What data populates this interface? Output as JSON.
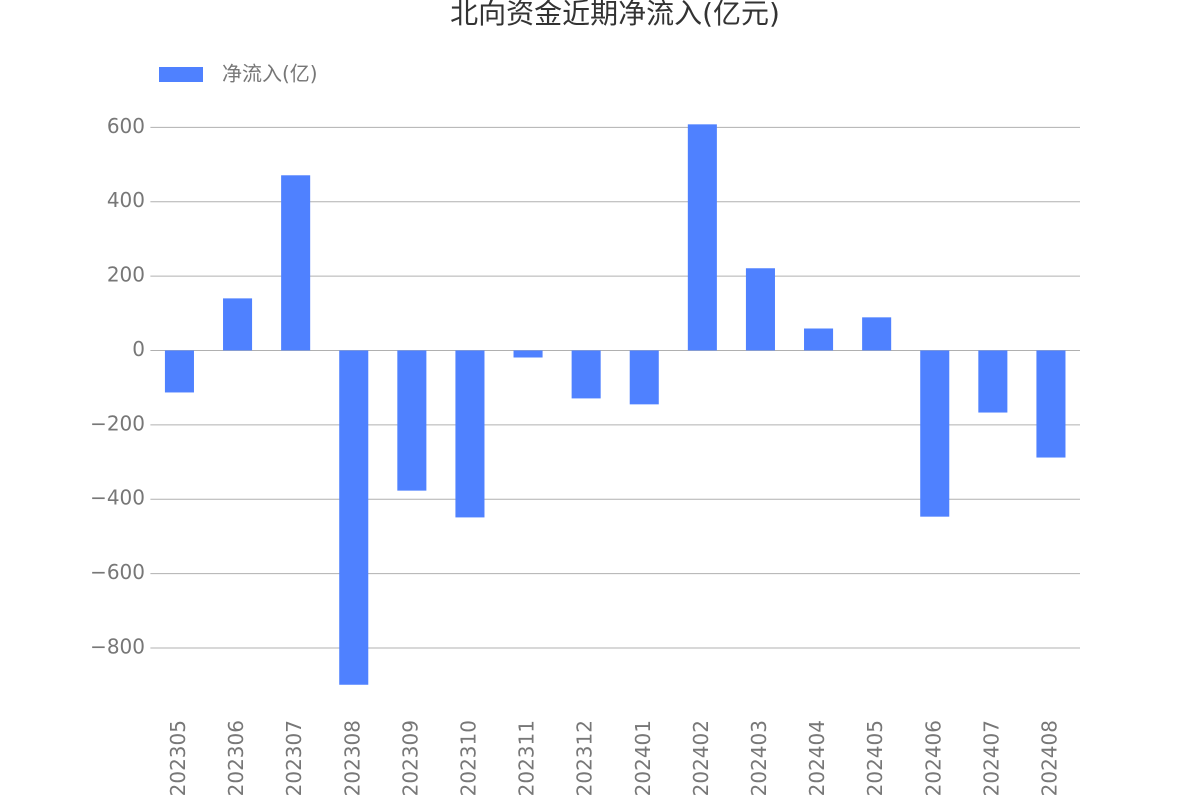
{
  "chart_data": {
    "type": "bar",
    "title": "北向资金近期净流入(亿元)",
    "categories": [
      "202305",
      "202306",
      "202307",
      "202308",
      "202309",
      "202310",
      "202311",
      "202312",
      "202401",
      "202402",
      "202403",
      "202404",
      "202405",
      "202406",
      "202407",
      "202408"
    ],
    "series": [
      {
        "name": "净流入(亿)",
        "color": "#4f81ff",
        "values": [
          -113,
          140,
          471,
          -899,
          -377,
          -449,
          -19,
          -129,
          -145,
          608,
          221,
          59,
          89,
          -447,
          -167,
          -288
        ]
      }
    ],
    "ylim": [
      -940,
      660
    ],
    "yticks": [
      {
        "value": -800,
        "label": "−800"
      },
      {
        "value": -600,
        "label": "−600"
      },
      {
        "value": -400,
        "label": "−400"
      },
      {
        "value": -200,
        "label": "−200"
      },
      0,
      200,
      400,
      600
    ],
    "grid": true
  }
}
